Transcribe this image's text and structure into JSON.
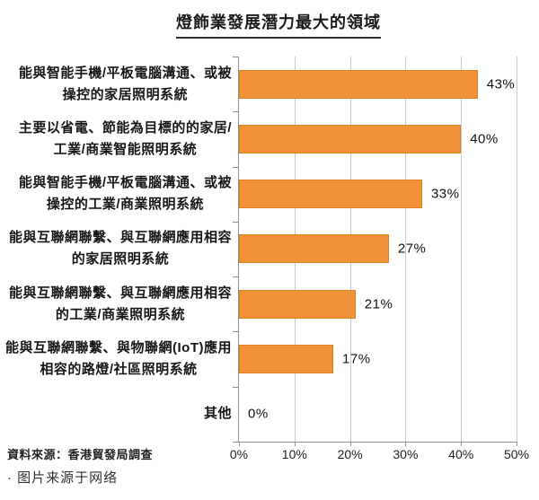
{
  "page": {
    "background": "#ffffff"
  },
  "chart_data": {
    "type": "bar",
    "orientation": "horizontal",
    "title": "燈飾業發展潛力最大的領域",
    "categories": [
      "能與智能手機/平板電腦溝通、或被\n操控的家居照明系統",
      "主要以省電、節能為目標的的家居/\n工業/商業智能照明系統",
      "能與智能手機/平板電腦溝通、或被\n操控的工業/商業照明系統",
      "能與互聯網聯繫、與互聯網應用相容\n的家居照明系統",
      "能與互聯網聯繫、與互聯網應用相容\n的工業/商業照明系統",
      "能與互聯網聯繫、與物聯網(IoT)應用\n相容的路燈/社區照明系統",
      "其他"
    ],
    "values": [
      43,
      40,
      33,
      27,
      21,
      17,
      0
    ],
    "value_labels": [
      "43%",
      "40%",
      "33%",
      "27%",
      "21%",
      "17%",
      "0%"
    ],
    "x_tick_labels": [
      "0%",
      "10%",
      "20%",
      "30%",
      "40%",
      "50%"
    ],
    "xlim": [
      0,
      50
    ],
    "grid": true,
    "legend": "none",
    "bar_color": "#f0923a",
    "source_note": "資料來源：香港貿發局調查"
  },
  "footer": {
    "image_note": "· 图片来源于网络"
  }
}
